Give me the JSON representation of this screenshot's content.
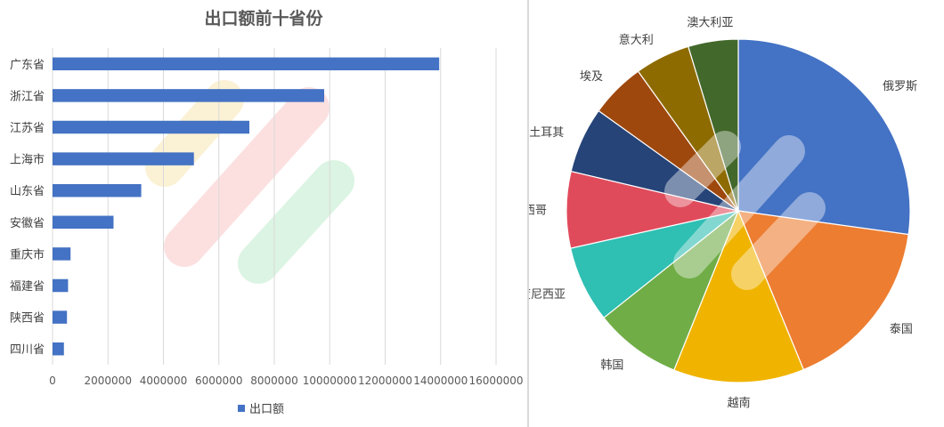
{
  "chart_data": [
    {
      "type": "bar",
      "orientation": "horizontal",
      "title": "出口额前十省份",
      "categories": [
        "广东省",
        "浙江省",
        "江苏省",
        "上海市",
        "山东省",
        "安徽省",
        "重庆市",
        "福建省",
        "陕西省",
        "四川省"
      ],
      "series": [
        {
          "name": "出口额",
          "color": "#4472c4",
          "values": [
            13950000,
            9800000,
            7100000,
            5100000,
            3200000,
            2200000,
            650000,
            560000,
            520000,
            410000
          ]
        }
      ],
      "xlim": [
        0,
        16000000
      ],
      "x_ticks": [
        "0",
        "2000000",
        "4000000",
        "6000000",
        "8000000",
        "10000000",
        "12000000",
        "14000000",
        "16000000"
      ],
      "grid": true,
      "legend_position": "bottom"
    },
    {
      "type": "pie",
      "labels": [
        "俄罗斯",
        "泰国",
        "越南",
        "韩国",
        "印度尼西亚",
        "墨西哥",
        "土耳其",
        "埃及",
        "意大利",
        "澳大利亚"
      ],
      "values": [
        27.2,
        16.6,
        12.3,
        8.2,
        7.2,
        7.2,
        6.2,
        5.2,
        5.2,
        4.7
      ],
      "colors": [
        "#4472c4",
        "#ed7d31",
        "#f0b400",
        "#70ad47",
        "#2fbfb3",
        "#e04b5c",
        "#264478",
        "#9e480e",
        "#8e6b00",
        "#43682b"
      ],
      "start_angle_deg": 0,
      "direction": "clockwise"
    }
  ]
}
